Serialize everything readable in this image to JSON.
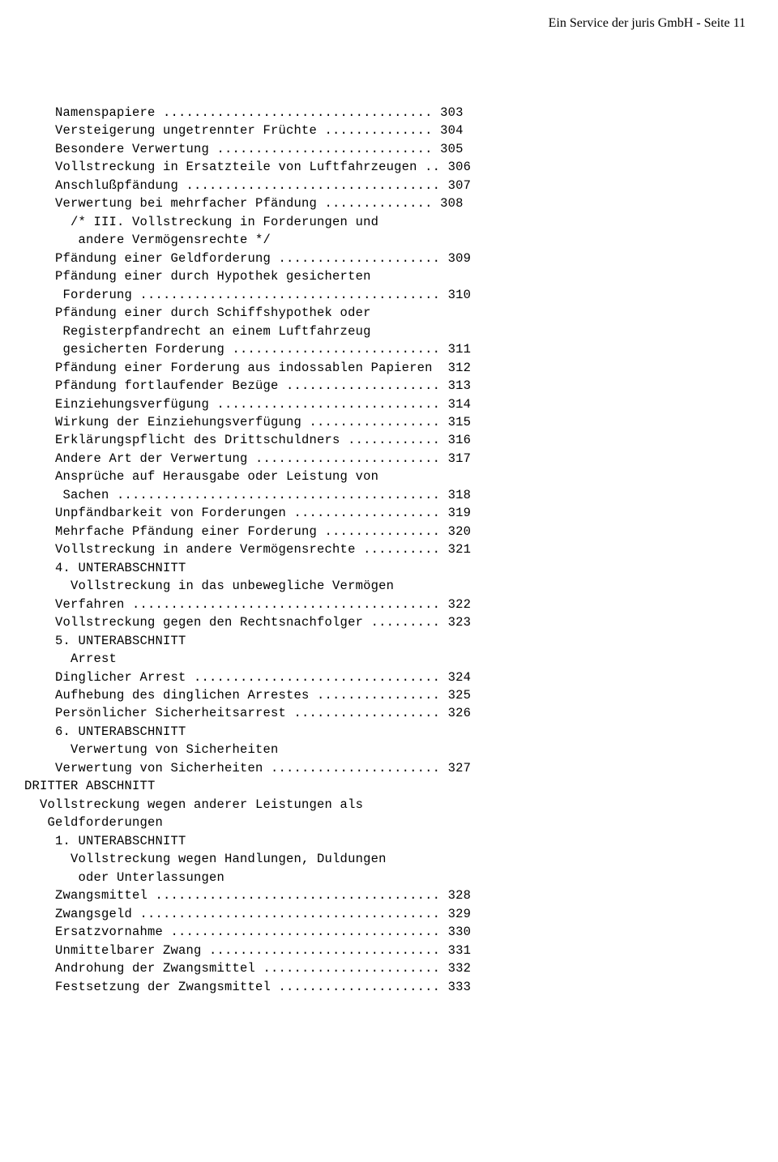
{
  "header": "Ein Service der juris GmbH - Seite 11",
  "lines": [
    {
      "t": "    Namenspapiere ................................... 303",
      "i": 0
    },
    {
      "t": "    Versteigerung ungetrennter Früchte .............. 304",
      "i": 0
    },
    {
      "t": "    Besondere Verwertung ............................ 305",
      "i": 0
    },
    {
      "t": "    Vollstreckung in Ersatzteile von Luftfahrzeugen .. 306",
      "i": 0
    },
    {
      "t": "    Anschlußpfändung ................................. 307",
      "i": 0
    },
    {
      "t": "    Verwertung bei mehrfacher Pfändung .............. 308",
      "i": 0
    },
    {
      "t": "      /* III. Vollstreckung in Forderungen und",
      "i": 0
    },
    {
      "t": "       andere Vermögensrechte */",
      "i": 0
    },
    {
      "t": "    Pfändung einer Geldforderung ..................... 309",
      "i": 0
    },
    {
      "t": "    Pfändung einer durch Hypothek gesicherten",
      "i": 0
    },
    {
      "t": "     Forderung ....................................... 310",
      "i": 0
    },
    {
      "t": "    Pfändung einer durch Schiffshypothek oder",
      "i": 0
    },
    {
      "t": "     Registerpfandrecht an einem Luftfahrzeug",
      "i": 0
    },
    {
      "t": "     gesicherten Forderung ........................... 311",
      "i": 0
    },
    {
      "t": "    Pfändung einer Forderung aus indossablen Papieren  312",
      "i": 0
    },
    {
      "t": "    Pfändung fortlaufender Bezüge .................... 313",
      "i": 0
    },
    {
      "t": "    Einziehungsverfügung ............................. 314",
      "i": 0
    },
    {
      "t": "    Wirkung der Einziehungsverfügung ................. 315",
      "i": 0
    },
    {
      "t": "    Erklärungspflicht des Drittschuldners ............ 316",
      "i": 0
    },
    {
      "t": "    Andere Art der Verwertung ........................ 317",
      "i": 0
    },
    {
      "t": "    Ansprüche auf Herausgabe oder Leistung von",
      "i": 0
    },
    {
      "t": "     Sachen .......................................... 318",
      "i": 0
    },
    {
      "t": "    Unpfändbarkeit von Forderungen ................... 319",
      "i": 0
    },
    {
      "t": "    Mehrfache Pfändung einer Forderung ............... 320",
      "i": 0
    },
    {
      "t": "    Vollstreckung in andere Vermögensrechte .......... 321",
      "i": 0
    },
    {
      "t": "    4. UNTERABSCHNITT",
      "i": 0
    },
    {
      "t": "      Vollstreckung in das unbewegliche Vermögen",
      "i": 0
    },
    {
      "t": "    Verfahren ........................................ 322",
      "i": 0
    },
    {
      "t": "    Vollstreckung gegen den Rechtsnachfolger ......... 323",
      "i": 0
    },
    {
      "t": "    5. UNTERABSCHNITT",
      "i": 0
    },
    {
      "t": "      Arrest",
      "i": 0
    },
    {
      "t": "    Dinglicher Arrest ................................ 324",
      "i": 0
    },
    {
      "t": "    Aufhebung des dinglichen Arrestes ................ 325",
      "i": 0
    },
    {
      "t": "    Persönlicher Sicherheitsarrest ................... 326",
      "i": 0
    },
    {
      "t": "    6. UNTERABSCHNITT",
      "i": 0
    },
    {
      "t": "      Verwertung von Sicherheiten",
      "i": 0
    },
    {
      "t": "    Verwertung von Sicherheiten ...................... 327",
      "i": 0
    },
    {
      "t": "DRITTER ABSCHNITT",
      "i": 0
    },
    {
      "t": "  Vollstreckung wegen anderer Leistungen als",
      "i": 0
    },
    {
      "t": "   Geldforderungen",
      "i": 0
    },
    {
      "t": "    1. UNTERABSCHNITT",
      "i": 0
    },
    {
      "t": "      Vollstreckung wegen Handlungen, Duldungen",
      "i": 0
    },
    {
      "t": "       oder Unterlassungen",
      "i": 0
    },
    {
      "t": "    Zwangsmittel ..................................... 328",
      "i": 0
    },
    {
      "t": "    Zwangsgeld ....................................... 329",
      "i": 0
    },
    {
      "t": "    Ersatzvornahme ................................... 330",
      "i": 0
    },
    {
      "t": "    Unmittelbarer Zwang .............................. 331",
      "i": 0
    },
    {
      "t": "    Androhung der Zwangsmittel ....................... 332",
      "i": 0
    },
    {
      "t": "    Festsetzung der Zwangsmittel ..................... 333",
      "i": 0
    }
  ]
}
